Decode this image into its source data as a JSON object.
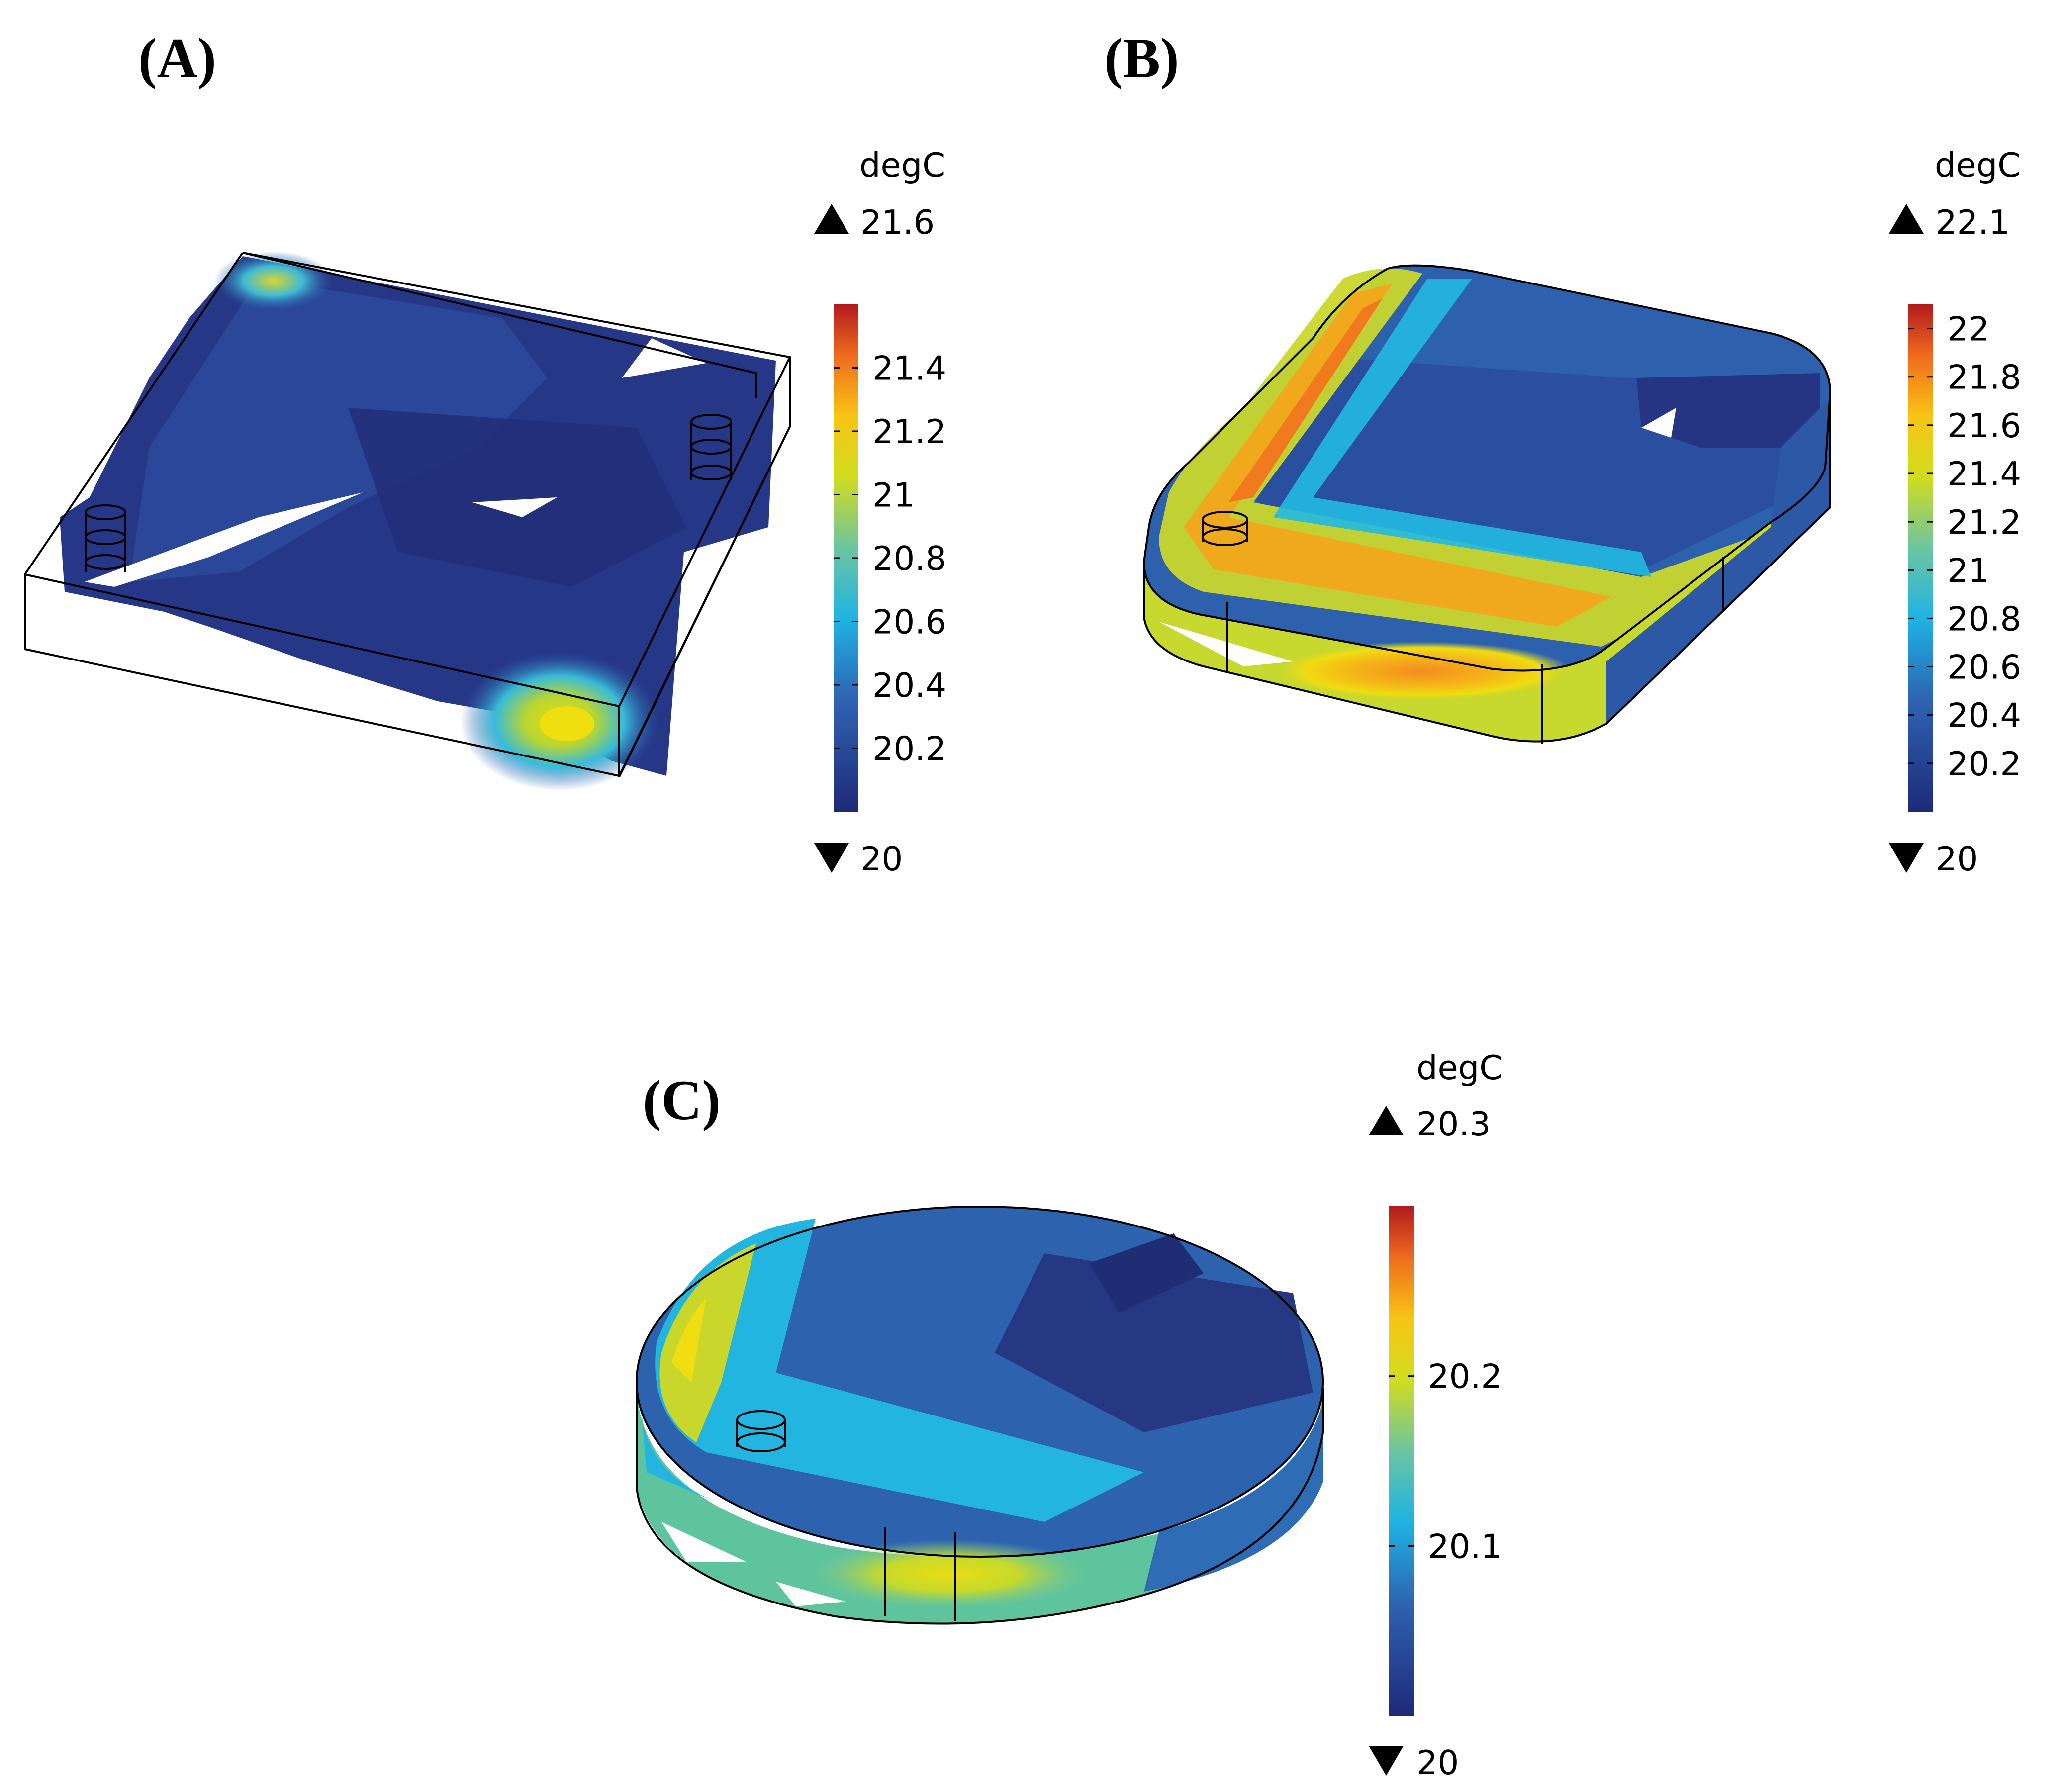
{
  "panels": [
    {
      "label": "(A)",
      "colorbar": {
        "unit": "degC",
        "max_label": "21.6",
        "min_label": "20",
        "ticks": [
          "21.4",
          "21.2",
          "21",
          "20.8",
          "20.6",
          "20.4",
          "20.2"
        ],
        "range": [
          20.0,
          21.6
        ]
      }
    },
    {
      "label": "(B)",
      "colorbar": {
        "unit": "degC",
        "max_label": "22.1",
        "min_label": "20",
        "ticks": [
          "22",
          "21.8",
          "21.6",
          "21.4",
          "21.2",
          "21",
          "20.8",
          "20.6",
          "20.4",
          "20.2"
        ],
        "range": [
          20.0,
          22.1
        ]
      }
    },
    {
      "label": "(C)",
      "colorbar": {
        "unit": "degC",
        "max_label": "20.3",
        "min_label": "20",
        "ticks": [
          "20.2",
          "20.1"
        ],
        "range": [
          20.0,
          20.3
        ]
      }
    }
  ],
  "colors": {
    "dark_blue": "#23307a",
    "blue": "#2d5aa8",
    "light_blue": "#2ba6d8",
    "cyan": "#22c3e0",
    "teal": "#5cc6a6",
    "yellow_green": "#c7d92c",
    "yellow": "#f2dc12",
    "orange": "#f28f22",
    "red": "#c7201f"
  }
}
